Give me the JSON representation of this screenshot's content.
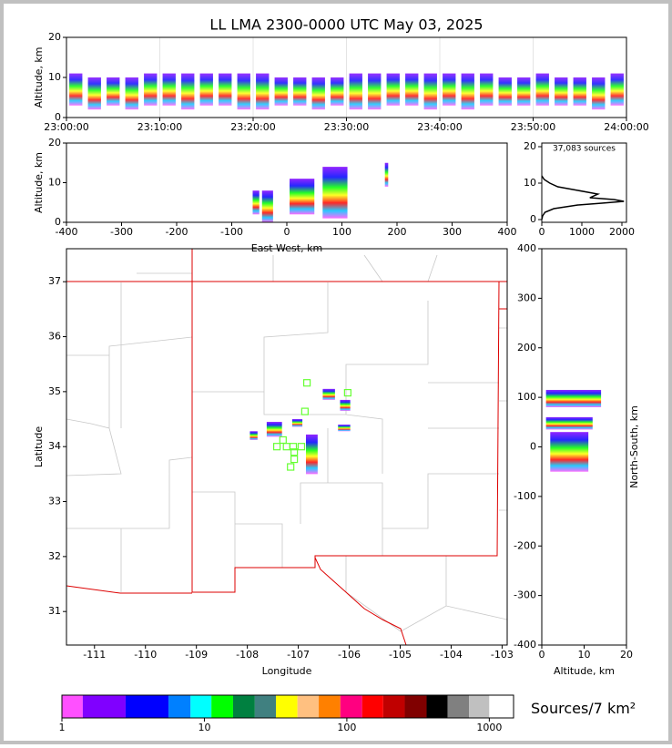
{
  "chart_data": [
    {
      "type": "range",
      "title": "LL LMA 2300-0000 UTC May 03, 2025",
      "ylabel": "Altitude, km",
      "grid": true,
      "xlim": [
        0,
        60
      ],
      "xticks": [
        {
          "value": 0,
          "label": "23:00:00"
        },
        {
          "value": 10,
          "label": "23:10:00"
        },
        {
          "value": 20,
          "label": "23:20:00"
        },
        {
          "value": 30,
          "label": "23:30:00"
        },
        {
          "value": 40,
          "label": "23:40:00"
        },
        {
          "value": 50,
          "label": "23:50:00"
        },
        {
          "value": 60,
          "label": "24:00:00"
        }
      ],
      "ylim": [
        0,
        20
      ],
      "yticks": [
        0,
        10,
        20
      ],
      "x": [
        1,
        3,
        5,
        7,
        9,
        11,
        13,
        15,
        17,
        19,
        21,
        23,
        25,
        27,
        29,
        31,
        33,
        35,
        37,
        39,
        41,
        43,
        45,
        47,
        49,
        51,
        53,
        55,
        57,
        59
      ],
      "low": [
        3,
        2,
        3,
        2,
        3,
        3,
        2,
        3,
        3,
        2,
        2,
        3,
        3,
        2,
        3,
        2,
        2,
        3,
        3,
        2,
        3,
        2,
        3,
        3,
        3,
        3,
        3,
        3,
        2,
        3
      ],
      "high": [
        11,
        10,
        10,
        10,
        11,
        11,
        11,
        11,
        11,
        11,
        11,
        10,
        10,
        10,
        10,
        11,
        11,
        11,
        11,
        11,
        11,
        11,
        11,
        10,
        10,
        11,
        10,
        10,
        10,
        11
      ]
    },
    {
      "type": "boxes",
      "ylabel": "Altitude, km",
      "xlabel": "East-West, km",
      "xlim": [
        -400,
        400
      ],
      "xticks": [
        -400,
        -300,
        -200,
        -100,
        0,
        100,
        200,
        300,
        400
      ],
      "ylim": [
        0,
        20
      ],
      "yticks": [
        0,
        10,
        20
      ],
      "x0": [
        -62,
        -45,
        5,
        65,
        178
      ],
      "x1": [
        -50,
        -25,
        50,
        110,
        184
      ],
      "y0": [
        2,
        0,
        2,
        1,
        9
      ],
      "y1": [
        8,
        8,
        11,
        14,
        15
      ]
    },
    {
      "type": "line",
      "annotation": "37,083 sources",
      "color": "#000000",
      "xlim": [
        0,
        2114
      ],
      "xticks": [
        0,
        1000,
        2000
      ],
      "ylim": [
        -0.75,
        21
      ],
      "yticks": [
        0,
        10,
        20
      ],
      "x": [
        0,
        20,
        80,
        300,
        900,
        1500,
        2050,
        1800,
        1200,
        1400,
        900,
        400,
        200,
        60,
        0
      ],
      "y": [
        0,
        1,
        2,
        3,
        4,
        4.5,
        5,
        5.5,
        6,
        7,
        8,
        9,
        10,
        11,
        12
      ]
    },
    {
      "type": "map",
      "xlabel": "Longitude",
      "ylabel": "Latitude",
      "xlim": [
        -111.55,
        -102.9
      ],
      "xticks": [
        -111,
        -110,
        -109,
        -108,
        -107,
        -106,
        -105,
        -104,
        -103
      ],
      "ylim": [
        30.39,
        37.6
      ],
      "yticks": [
        31,
        32,
        33,
        34,
        35,
        36,
        37
      ],
      "x0": [
        -107.95,
        -107.62,
        -107.12,
        -106.85,
        -106.52,
        -106.18,
        -106.22
      ],
      "x1": [
        -107.8,
        -107.32,
        -106.92,
        -106.62,
        -106.28,
        -105.98,
        -105.98
      ],
      "y0": [
        34.12,
        34.18,
        34.36,
        33.5,
        34.85,
        34.65,
        34.28
      ],
      "y1": [
        34.28,
        34.45,
        34.5,
        34.22,
        35.05,
        34.85,
        34.4
      ],
      "stations": {
        "color": "#66ff33",
        "lon": [
          -106.83,
          -106.03,
          -106.87,
          -107.3,
          -107.42,
          -107.23,
          -107.1,
          -106.94,
          -107.08,
          -107.08,
          -107.15
        ],
        "lat": [
          35.16,
          34.98,
          34.64,
          34.12,
          34.0,
          34.0,
          34.0,
          34.0,
          33.9,
          33.77,
          33.63
        ]
      }
    },
    {
      "type": "boxes",
      "xlabel": "Altitude, km",
      "ylabel": "North-South, km",
      "xlim": [
        0,
        20
      ],
      "xticks": [
        0,
        10,
        20
      ],
      "ylim": [
        -400,
        400
      ],
      "yticks": [
        -400,
        -300,
        -200,
        -100,
        0,
        100,
        200,
        300,
        400
      ],
      "x0": [
        1,
        1,
        2
      ],
      "x1": [
        14,
        12,
        11
      ],
      "y0": [
        80,
        35,
        -50
      ],
      "y1": [
        115,
        60,
        30
      ]
    },
    {
      "type": "colorbar",
      "label": "Sources/7 km²",
      "log": true,
      "xlim": [
        1,
        1480
      ],
      "xticks": [
        1,
        10,
        100,
        1000
      ],
      "bounds": [
        1,
        1.4,
        2.8,
        5.6,
        8,
        11.2,
        15.9,
        22.6,
        31.8,
        45,
        63.5,
        90,
        128,
        180,
        255,
        363,
        510,
        720,
        1000,
        1480
      ],
      "colors": [
        "#ff50ff",
        "#8000ff",
        "#0000ff",
        "#0080ff",
        "#00ffff",
        "#00ff00",
        "#008040",
        "#408080",
        "#ffff00",
        "#ffc080",
        "#ff8000",
        "#ff0080",
        "#ff0000",
        "#c00000",
        "#800000",
        "#000000",
        "#808080",
        "#c0c0c0",
        "#ffffff"
      ]
    }
  ]
}
